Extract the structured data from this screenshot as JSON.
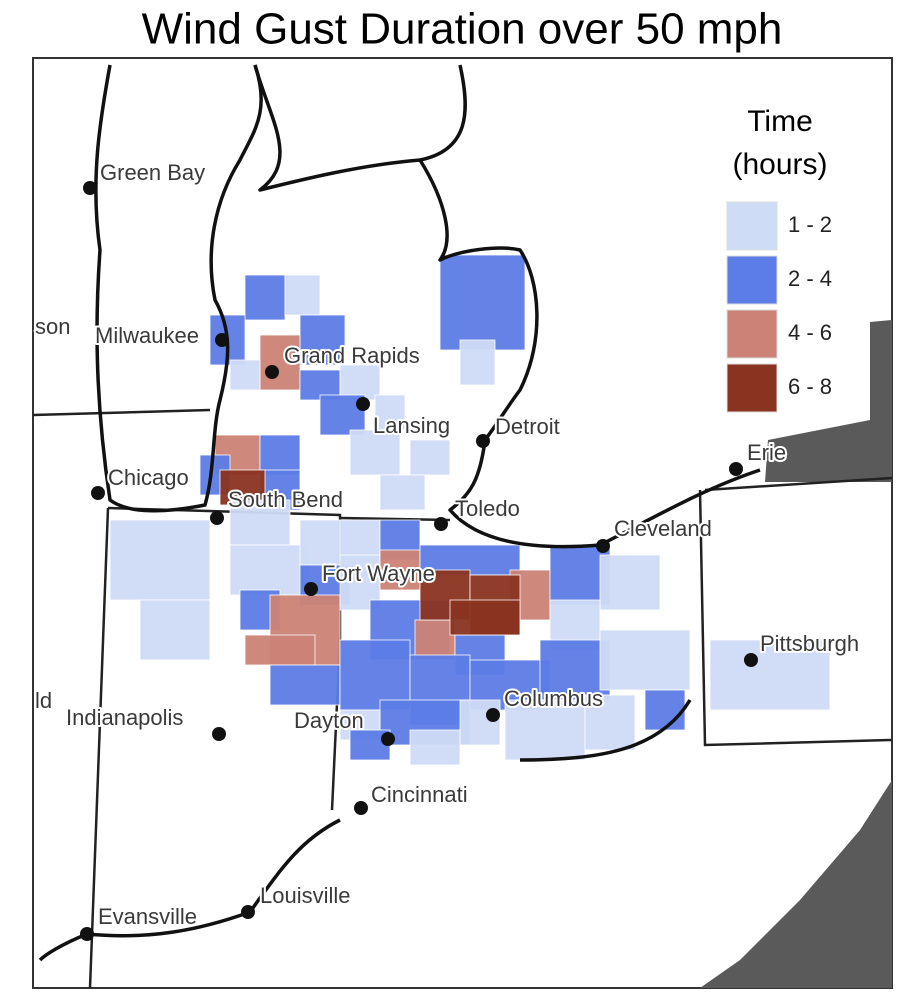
{
  "title": "Wind Gust Duration over 50 mph",
  "legend": {
    "title_lines": [
      "Time",
      "(hours)"
    ],
    "items": [
      {
        "label": "1 - 2",
        "color": "#cfdcf6"
      },
      {
        "label": "2 - 4",
        "color": "#5d7de6"
      },
      {
        "label": "4 - 6",
        "color": "#cc8276"
      },
      {
        "label": "6 - 8",
        "color": "#8b3321"
      }
    ]
  },
  "cities": [
    "Green Bay",
    "Milwaukee",
    "Grand Rapids",
    "Lansing",
    "Detroit",
    "Chicago",
    "South Bend",
    "Toledo",
    "Cleveland",
    "Erie",
    "Fort Wayne",
    "Pittsburgh",
    "Indianapolis",
    "Dayton",
    "Columbus",
    "Cincinnati",
    "Louisville",
    "Evansville"
  ],
  "edge_labels": [
    "son",
    "ld"
  ]
}
